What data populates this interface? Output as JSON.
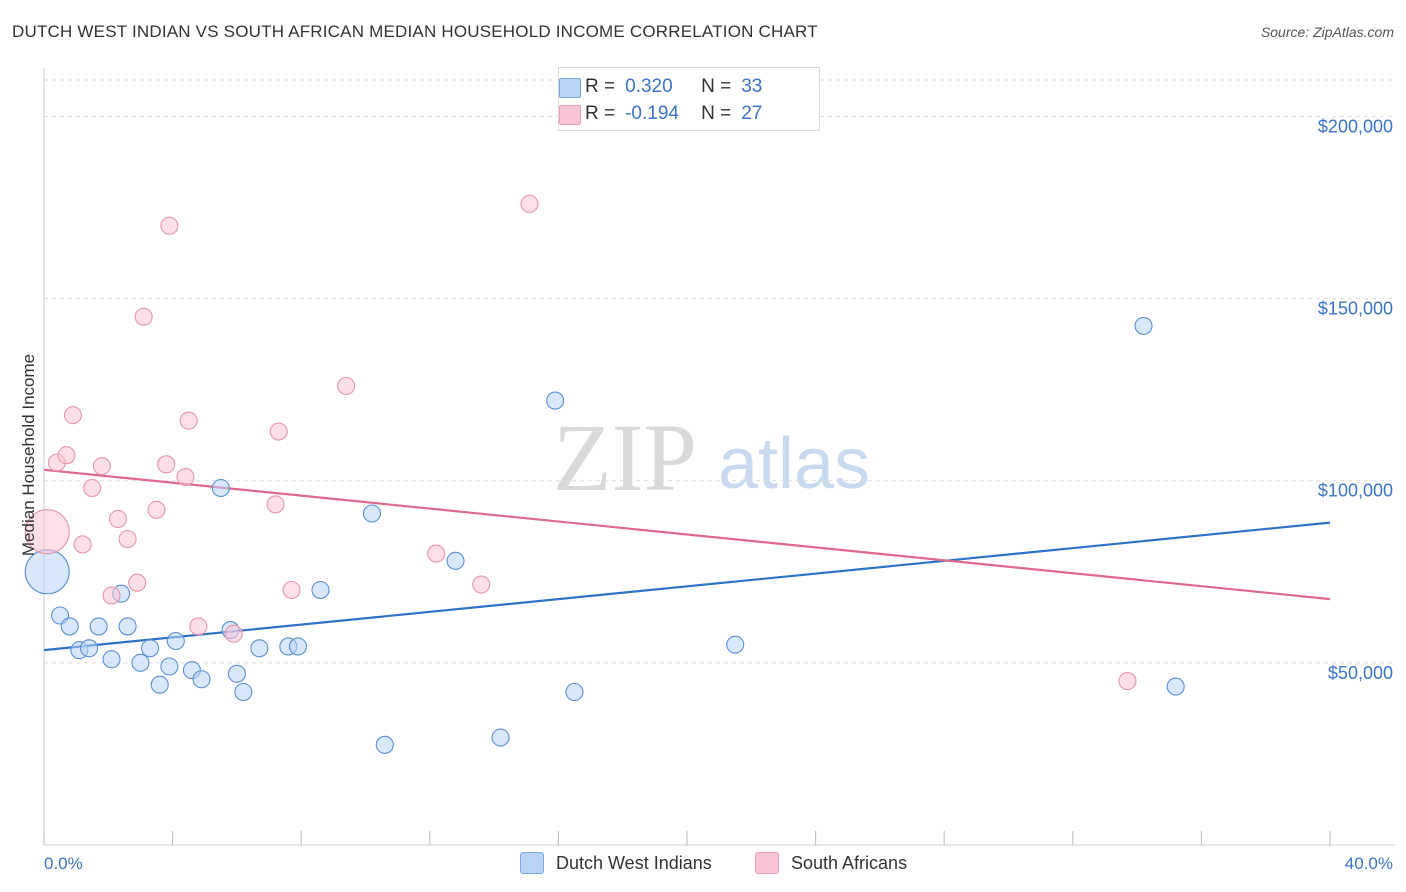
{
  "title": "DUTCH WEST INDIAN VS SOUTH AFRICAN MEDIAN HOUSEHOLD INCOME CORRELATION CHART",
  "source": "Source: ZipAtlas.com",
  "watermark": {
    "zip": "ZIP",
    "atlas": "atlas"
  },
  "legend": {
    "rows": [
      {
        "r_label": "R =",
        "r_value": "0.320",
        "n_label": "N =",
        "n_value": "33"
      },
      {
        "r_label": "R =",
        "r_value": "-0.194",
        "n_label": "N =",
        "n_value": "27"
      }
    ]
  },
  "colors": {
    "blue_fill": "#b8d3f5",
    "blue_stroke": "#5b8fd6",
    "blue_line": "#2f72c8",
    "pink_fill": "#f9c4d3",
    "pink_stroke": "#e695ad",
    "pink_line": "#e0688f",
    "grid": "#dddddd",
    "axis_text": "#3a74c6"
  },
  "chart_data": {
    "type": "scatter",
    "title": "DUTCH WEST INDIAN VS SOUTH AFRICAN MEDIAN HOUSEHOLD INCOME CORRELATION CHART",
    "xlabel": "",
    "ylabel": "Median Household Income",
    "xlim": [
      0,
      40
    ],
    "ylim": [
      0,
      210000
    ],
    "x_tick_labels": [
      "0.0%",
      "40.0%"
    ],
    "y_ticks": [
      50000,
      100000,
      150000,
      200000
    ],
    "y_tick_labels": [
      "$50,000",
      "$100,000",
      "$150,000",
      "$200,000"
    ],
    "grid": true,
    "legend_position": "bottom",
    "series": [
      {
        "name": "Dutch West Indians",
        "color": "#5b8fd6",
        "trend": {
          "x": [
            0,
            40
          ],
          "y": [
            53500,
            88500
          ]
        },
        "points": [
          {
            "x": 0.1,
            "y": 75000,
            "big": true
          },
          {
            "x": 0.5,
            "y": 63000
          },
          {
            "x": 0.8,
            "y": 60000
          },
          {
            "x": 1.1,
            "y": 53500
          },
          {
            "x": 1.4,
            "y": 54000
          },
          {
            "x": 1.7,
            "y": 60000
          },
          {
            "x": 2.1,
            "y": 51000
          },
          {
            "x": 2.4,
            "y": 69000
          },
          {
            "x": 2.6,
            "y": 60000
          },
          {
            "x": 3.0,
            "y": 50000
          },
          {
            "x": 3.3,
            "y": 54000
          },
          {
            "x": 3.6,
            "y": 44000
          },
          {
            "x": 3.9,
            "y": 49000
          },
          {
            "x": 4.1,
            "y": 56000
          },
          {
            "x": 4.6,
            "y": 48000
          },
          {
            "x": 4.9,
            "y": 45500
          },
          {
            "x": 5.5,
            "y": 98000
          },
          {
            "x": 5.8,
            "y": 59000
          },
          {
            "x": 6.0,
            "y": 47000
          },
          {
            "x": 6.2,
            "y": 42000
          },
          {
            "x": 6.7,
            "y": 54000
          },
          {
            "x": 7.6,
            "y": 54500
          },
          {
            "x": 7.9,
            "y": 54500
          },
          {
            "x": 8.6,
            "y": 70000
          },
          {
            "x": 10.2,
            "y": 91000
          },
          {
            "x": 10.6,
            "y": 27500
          },
          {
            "x": 12.8,
            "y": 78000
          },
          {
            "x": 14.2,
            "y": 29500
          },
          {
            "x": 15.9,
            "y": 122000
          },
          {
            "x": 16.5,
            "y": 42000
          },
          {
            "x": 21.5,
            "y": 55000
          },
          {
            "x": 34.2,
            "y": 142500
          },
          {
            "x": 35.2,
            "y": 43500
          }
        ]
      },
      {
        "name": "South Africans",
        "color": "#e695ad",
        "trend": {
          "x": [
            0,
            40
          ],
          "y": [
            103000,
            67500
          ]
        },
        "points": [
          {
            "x": 0.1,
            "y": 86000,
            "big": true
          },
          {
            "x": 0.4,
            "y": 105000
          },
          {
            "x": 0.7,
            "y": 107000
          },
          {
            "x": 0.9,
            "y": 118000
          },
          {
            "x": 1.2,
            "y": 82500
          },
          {
            "x": 1.5,
            "y": 98000
          },
          {
            "x": 1.8,
            "y": 104000
          },
          {
            "x": 2.1,
            "y": 68500
          },
          {
            "x": 2.3,
            "y": 89500
          },
          {
            "x": 2.6,
            "y": 84000
          },
          {
            "x": 2.9,
            "y": 72000
          },
          {
            "x": 3.1,
            "y": 145000
          },
          {
            "x": 3.5,
            "y": 92000
          },
          {
            "x": 3.8,
            "y": 104500
          },
          {
            "x": 3.9,
            "y": 170000
          },
          {
            "x": 4.4,
            "y": 101000
          },
          {
            "x": 4.5,
            "y": 116500
          },
          {
            "x": 4.8,
            "y": 60000
          },
          {
            "x": 5.9,
            "y": 58000
          },
          {
            "x": 7.2,
            "y": 93500
          },
          {
            "x": 7.3,
            "y": 113500
          },
          {
            "x": 7.7,
            "y": 70000
          },
          {
            "x": 9.4,
            "y": 126000
          },
          {
            "x": 12.2,
            "y": 80000
          },
          {
            "x": 13.6,
            "y": 71500
          },
          {
            "x": 15.1,
            "y": 176000
          },
          {
            "x": 33.7,
            "y": 45000
          }
        ]
      }
    ]
  }
}
